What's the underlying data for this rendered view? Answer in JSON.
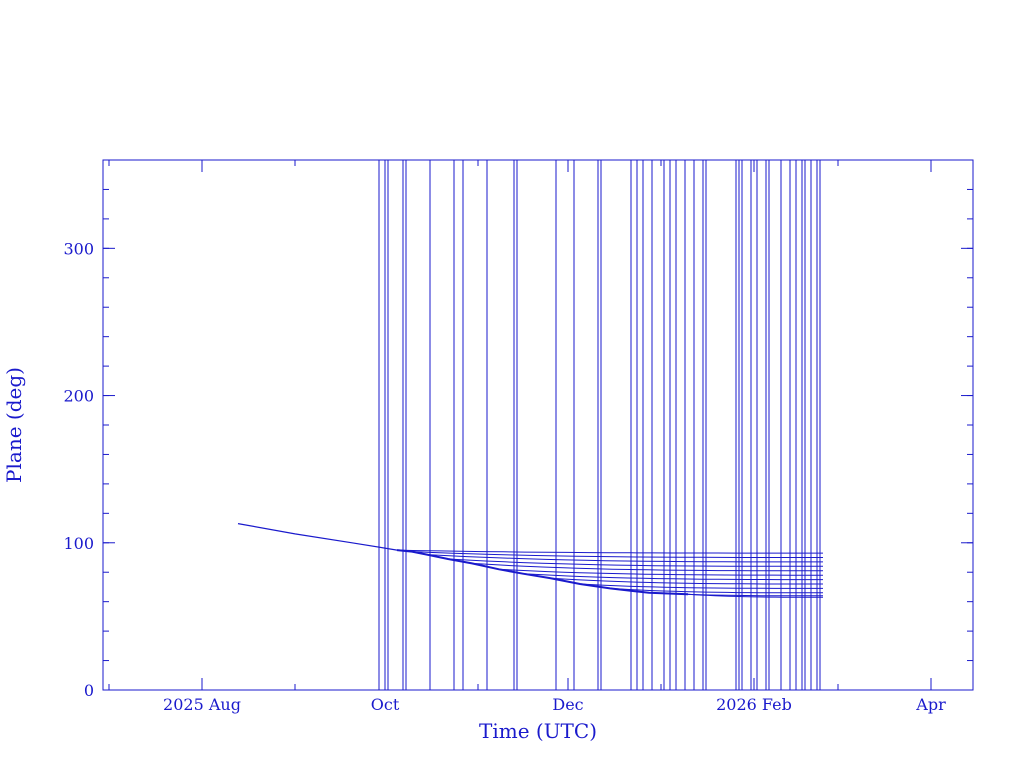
{
  "chart_data": {
    "type": "line",
    "title": "",
    "xlabel": "Time (UTC)",
    "ylabel": "Plane (deg)",
    "xlim": [
      "2025-06-29",
      "2026-04-15"
    ],
    "ylim": [
      0,
      360
    ],
    "x_ticks": [
      {
        "date": "2025-08-01",
        "label": "2025 Aug"
      },
      {
        "date": "2025-10-01",
        "label": "Oct"
      },
      {
        "date": "2025-12-01",
        "label": "Dec"
      },
      {
        "date": "2026-02-01",
        "label": "2026 Feb"
      },
      {
        "date": "2026-04-01",
        "label": "Apr"
      }
    ],
    "x_minor_ticks": [
      "2025-07-01",
      "2025-09-01",
      "2025-11-01",
      "2026-01-01",
      "2026-03-01"
    ],
    "y_ticks": [
      0,
      100,
      200,
      300
    ],
    "y_minor_step": 20,
    "color": "#1a1acc",
    "grid": false,
    "legend": "none",
    "main_track": [
      [
        "2025-08-13",
        113
      ],
      [
        "2025-09-01",
        106
      ],
      [
        "2025-09-20",
        100
      ],
      [
        "2025-10-05",
        95
      ]
    ],
    "branches": [
      {
        "start": [
          "2025-10-05",
          95
        ],
        "end": [
          "2026-02-24",
          93
        ]
      },
      {
        "start": [
          "2025-10-10",
          94
        ],
        "end": [
          "2026-02-24",
          90
        ]
      },
      {
        "start": [
          "2025-10-15",
          92
        ],
        "end": [
          "2026-02-24",
          87
        ]
      },
      {
        "start": [
          "2025-10-22",
          89
        ],
        "end": [
          "2026-02-24",
          84
        ]
      },
      {
        "start": [
          "2025-10-30",
          86
        ],
        "end": [
          "2026-02-24",
          81
        ]
      },
      {
        "start": [
          "2025-11-08",
          82
        ],
        "end": [
          "2026-02-24",
          78
        ]
      },
      {
        "start": [
          "2025-11-16",
          79
        ],
        "end": [
          "2026-02-24",
          75
        ]
      },
      {
        "start": [
          "2025-11-25",
          76
        ],
        "end": [
          "2026-02-24",
          72
        ]
      },
      {
        "start": [
          "2025-12-05",
          72
        ],
        "end": [
          "2026-02-24",
          69
        ]
      },
      {
        "start": [
          "2025-12-15",
          69
        ],
        "end": [
          "2026-02-24",
          66
        ]
      },
      {
        "start": [
          "2025-12-28",
          66
        ],
        "end": [
          "2026-02-24",
          64
        ]
      },
      {
        "start": [
          "2026-01-10",
          65
        ],
        "end": [
          "2026-02-24",
          63
        ]
      }
    ],
    "maneuver_dates": [
      "2025-09-29",
      "2025-10-01",
      "2025-10-02",
      "2025-10-07",
      "2025-10-08",
      "2025-10-16",
      "2025-10-24",
      "2025-10-27",
      "2025-11-04",
      "2025-11-13",
      "2025-11-14",
      "2025-11-27",
      "2025-12-03",
      "2025-12-11",
      "2025-12-12",
      "2025-12-22",
      "2025-12-24",
      "2025-12-26",
      "2025-12-29",
      "2026-01-02",
      "2026-01-04",
      "2026-01-06",
      "2026-01-09",
      "2026-01-12",
      "2026-01-15",
      "2026-01-16",
      "2026-01-26",
      "2026-01-27",
      "2026-01-28",
      "2026-01-31",
      "2026-02-02",
      "2026-02-05",
      "2026-02-06",
      "2026-02-10",
      "2026-02-13",
      "2026-02-15",
      "2026-02-17",
      "2026-02-18",
      "2026-02-20",
      "2026-02-22",
      "2026-02-23"
    ]
  }
}
